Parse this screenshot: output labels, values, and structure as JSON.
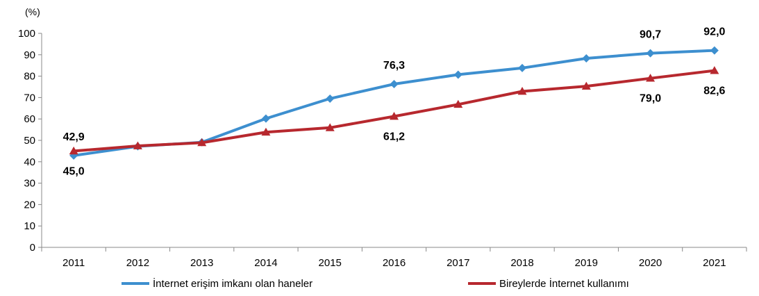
{
  "chart_data": {
    "type": "line",
    "title": "",
    "unit_label": "(%)",
    "xlabel": "",
    "ylabel": "",
    "ylim": [
      0,
      100
    ],
    "y_ticks": [
      "0",
      "10",
      "20",
      "30",
      "40",
      "50",
      "60",
      "70",
      "80",
      "90",
      "100"
    ],
    "categories": [
      "2011",
      "2012",
      "2013",
      "2014",
      "2015",
      "2016",
      "2017",
      "2018",
      "2019",
      "2020",
      "2021"
    ],
    "grid": false,
    "legend_position": "bottom",
    "series": [
      {
        "name": "İnternet erişim imkanı olan haneler",
        "color": "#3d8fcf",
        "marker": "diamond",
        "values": [
          42.9,
          47.2,
          49.1,
          60.2,
          69.5,
          76.3,
          80.7,
          83.8,
          88.3,
          90.7,
          92.0
        ]
      },
      {
        "name": "Bireylerde İnternet kullanımı",
        "color": "#b7282e",
        "marker": "triangle",
        "values": [
          45.0,
          47.4,
          48.9,
          53.8,
          55.9,
          61.2,
          66.8,
          72.9,
          75.3,
          79.0,
          82.6
        ]
      }
    ],
    "annotations": [
      {
        "series": 0,
        "index": 0,
        "text": "42,9",
        "placement": "above"
      },
      {
        "series": 1,
        "index": 0,
        "text": "45,0",
        "placement": "below"
      },
      {
        "series": 0,
        "index": 5,
        "text": "76,3",
        "placement": "above"
      },
      {
        "series": 1,
        "index": 5,
        "text": "61,2",
        "placement": "below"
      },
      {
        "series": 0,
        "index": 9,
        "text": "90,7",
        "placement": "above"
      },
      {
        "series": 1,
        "index": 9,
        "text": "79,0",
        "placement": "below"
      },
      {
        "series": 0,
        "index": 10,
        "text": "92,0",
        "placement": "above"
      },
      {
        "series": 1,
        "index": 10,
        "text": "82,6",
        "placement": "below"
      }
    ]
  }
}
